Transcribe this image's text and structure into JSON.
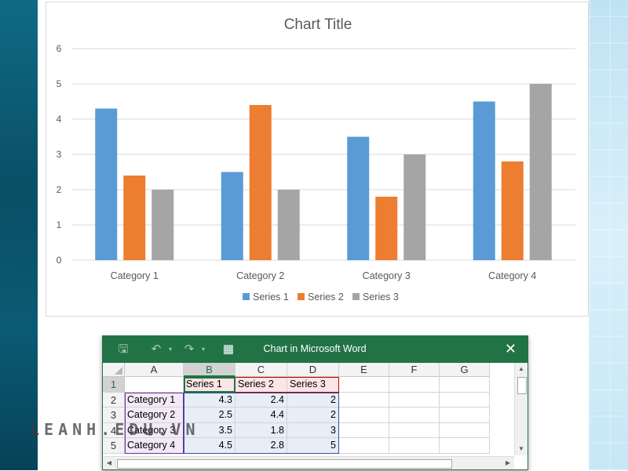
{
  "chart_data": {
    "type": "bar",
    "title": "Chart Title",
    "categories": [
      "Category 1",
      "Category 2",
      "Category 3",
      "Category 4"
    ],
    "series": [
      {
        "name": "Series 1",
        "values": [
          4.3,
          2.5,
          3.5,
          4.5
        ],
        "color": "#5b9bd5"
      },
      {
        "name": "Series 2",
        "values": [
          2.4,
          4.4,
          1.8,
          2.8
        ],
        "color": "#ed7d31"
      },
      {
        "name": "Series 3",
        "values": [
          2,
          2,
          3,
          5
        ],
        "color": "#a5a5a5"
      }
    ],
    "ylim": [
      0,
      6
    ],
    "yticks": [
      "0",
      "1",
      "2",
      "3",
      "4",
      "5",
      "6"
    ],
    "grid": true,
    "legend_position": "bottom"
  },
  "excel": {
    "window_title": "Chart in Microsoft Word",
    "close_glyph": "✕",
    "icons": [
      "save-icon",
      "undo-icon",
      "redo-icon",
      "edit-data-icon"
    ],
    "columns": [
      "A",
      "B",
      "C",
      "D",
      "E",
      "F",
      "G"
    ],
    "rows": [
      "1",
      "2",
      "3",
      "4",
      "5"
    ],
    "cells": [
      [
        "",
        "Series 1",
        "Series 2",
        "Series 3",
        "",
        "",
        ""
      ],
      [
        "Category 1",
        "4.3",
        "2.4",
        "2",
        "",
        "",
        ""
      ],
      [
        "Category 2",
        "2.5",
        "4.4",
        "2",
        "",
        "",
        ""
      ],
      [
        "Category 3",
        "3.5",
        "1.8",
        "3",
        "",
        "",
        ""
      ],
      [
        "Category 4",
        "4.5",
        "2.8",
        "5",
        "",
        "",
        ""
      ]
    ],
    "colors": {
      "title_bar": "#217346",
      "series_range": "#c00000",
      "category_range": "#7030a0",
      "values_range": "#2f5597"
    }
  },
  "watermark": "LEANH.EDU.VN"
}
